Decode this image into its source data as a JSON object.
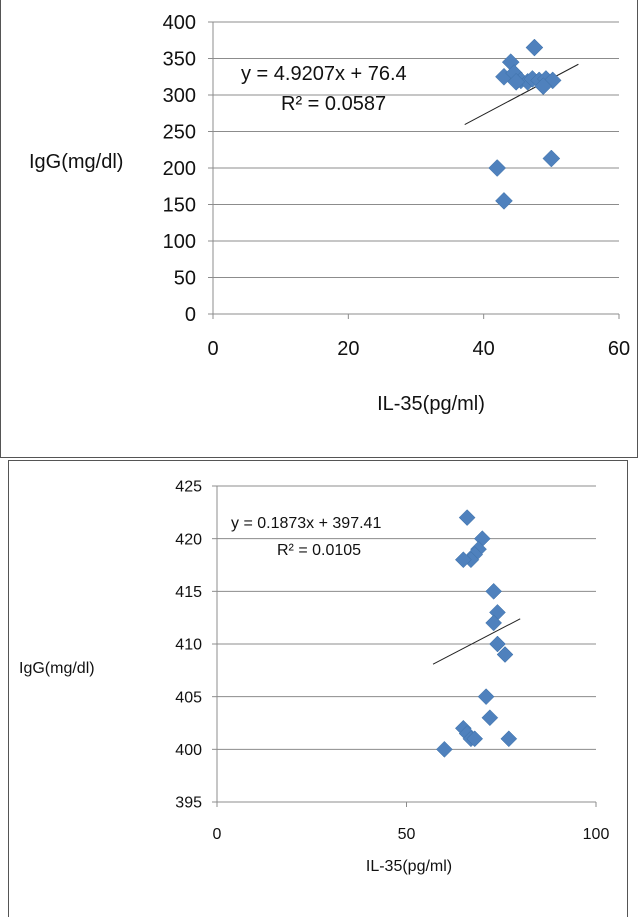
{
  "chart_data": [
    {
      "type": "scatter",
      "title": "",
      "xlabel": "IL-35(pg/ml)",
      "ylabel": "IgG(mg/dl)",
      "xlim": [
        0,
        60
      ],
      "ylim": [
        0,
        400
      ],
      "x_ticks": [
        "0",
        "20",
        "40",
        "60"
      ],
      "y_ticks": [
        "0",
        "50",
        "100",
        "150",
        "200",
        "250",
        "300",
        "350",
        "400"
      ],
      "grid": "horizontal",
      "marker_color": "#4f81bd",
      "trendline": {
        "slope": 4.9207,
        "intercept": 76.4,
        "x_range": [
          37.2,
          54.0
        ]
      },
      "equation": "y = 4.9207x + 76.4",
      "r_squared": "R² = 0.0587",
      "series": [
        {
          "x": [
            47.5,
            44.0,
            43.0,
            44.5,
            45.5,
            46.5,
            47.2,
            48.2,
            49.2,
            50.2,
            48.8,
            44.8,
            42.0,
            43.0,
            50.0
          ],
          "y": [
            365,
            345,
            325,
            330,
            320,
            318,
            322,
            320,
            322,
            320,
            312,
            318,
            200,
            155,
            213
          ]
        }
      ]
    },
    {
      "type": "scatter",
      "title": "",
      "xlabel": "IL-35(pg/ml)",
      "ylabel": "IgG(mg/dl)",
      "xlim": [
        0,
        100
      ],
      "ylim": [
        395,
        425
      ],
      "x_ticks": [
        "0",
        "50",
        "100"
      ],
      "y_ticks": [
        "395",
        "400",
        "405",
        "410",
        "415",
        "420",
        "425"
      ],
      "grid": "horizontal",
      "marker_color": "#4f81bd",
      "trendline": {
        "slope": 0.1873,
        "intercept": 397.41,
        "x_range": [
          57,
          80
        ]
      },
      "equation": "y = 0.1873x + 397.41",
      "r_squared": "R² = 0.0105",
      "series": [
        {
          "x": [
            66,
            70,
            69,
            68,
            67,
            65,
            73,
            74,
            73,
            74,
            76,
            71,
            72,
            65,
            66,
            67,
            68,
            60,
            77
          ],
          "y": [
            422,
            420,
            419,
            418.5,
            418,
            418,
            415,
            413,
            412,
            410,
            409,
            405,
            403,
            402,
            401.5,
            401,
            401,
            400,
            401
          ]
        }
      ]
    }
  ]
}
